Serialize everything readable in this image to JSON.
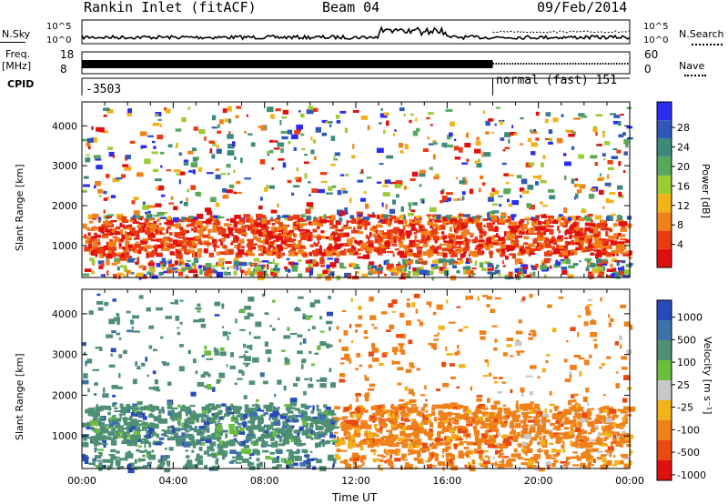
{
  "header": {
    "station": "Rankin Inlet (fitACF)",
    "beam": "Beam 04",
    "date": "09/Feb/2014"
  },
  "sky_panel": {
    "left_label": "N.Sky",
    "left_ticks": [
      "10^5",
      "10^0"
    ],
    "right_label": "N.Search",
    "right_ticks": [
      "10^5",
      "10^0"
    ]
  },
  "freq_panel": {
    "left_label_1": "Freq.",
    "left_label_2": "[MHz]",
    "left_ticks": [
      "18",
      "8"
    ],
    "right_label": "Nave",
    "right_ticks": [
      "60",
      "0"
    ]
  },
  "cpid_panel": {
    "label": "CPID",
    "segments": [
      {
        "label": "-3503",
        "start_hour": 0
      },
      {
        "label": "normal (fast) 151",
        "start_hour": 18
      }
    ]
  },
  "time_axis": {
    "label": "Time UT",
    "ticks": [
      "00:00",
      "04:00",
      "08:00",
      "12:00",
      "16:00",
      "20:00",
      "00:00"
    ]
  },
  "chart_data": [
    {
      "type": "heatmap",
      "name": "power-panel",
      "xlabel": "Time UT",
      "ylabel": "Slant Range [km]",
      "xlim_hours": [
        0,
        24
      ],
      "ylim": [
        200,
        4600
      ],
      "yticks": [
        "1000",
        "2000",
        "3000",
        "4000"
      ],
      "colorbar": {
        "label": "Power [dB]",
        "ticks": [
          "4",
          "8",
          "12",
          "16",
          "20",
          "24",
          "28"
        ],
        "colors": [
          "#2a2ef0",
          "#2f58b8",
          "#3e8a7a",
          "#57a85a",
          "#9ccb35",
          "#f2b21a",
          "#f0801a",
          "#ea3a12",
          "#e01010"
        ]
      }
    },
    {
      "type": "heatmap",
      "name": "velocity-panel",
      "xlabel": "Time UT",
      "ylabel": "Slant Range [km]",
      "xlim_hours": [
        0,
        24
      ],
      "ylim": [
        200,
        4600
      ],
      "yticks": [
        "1000",
        "2000",
        "3000",
        "4000"
      ],
      "colorbar": {
        "label": "Velocity [m s⁻¹]",
        "ticks": [
          "1000",
          "500",
          "100",
          "25",
          "-25",
          "-100",
          "-500",
          "-1000"
        ],
        "colors": [
          "#2a4ab8",
          "#3c72a8",
          "#4f8f74",
          "#6bbd3e",
          "#c8c8c8",
          "#f2b21a",
          "#f08019",
          "#ea4a12",
          "#e01010"
        ]
      }
    }
  ]
}
